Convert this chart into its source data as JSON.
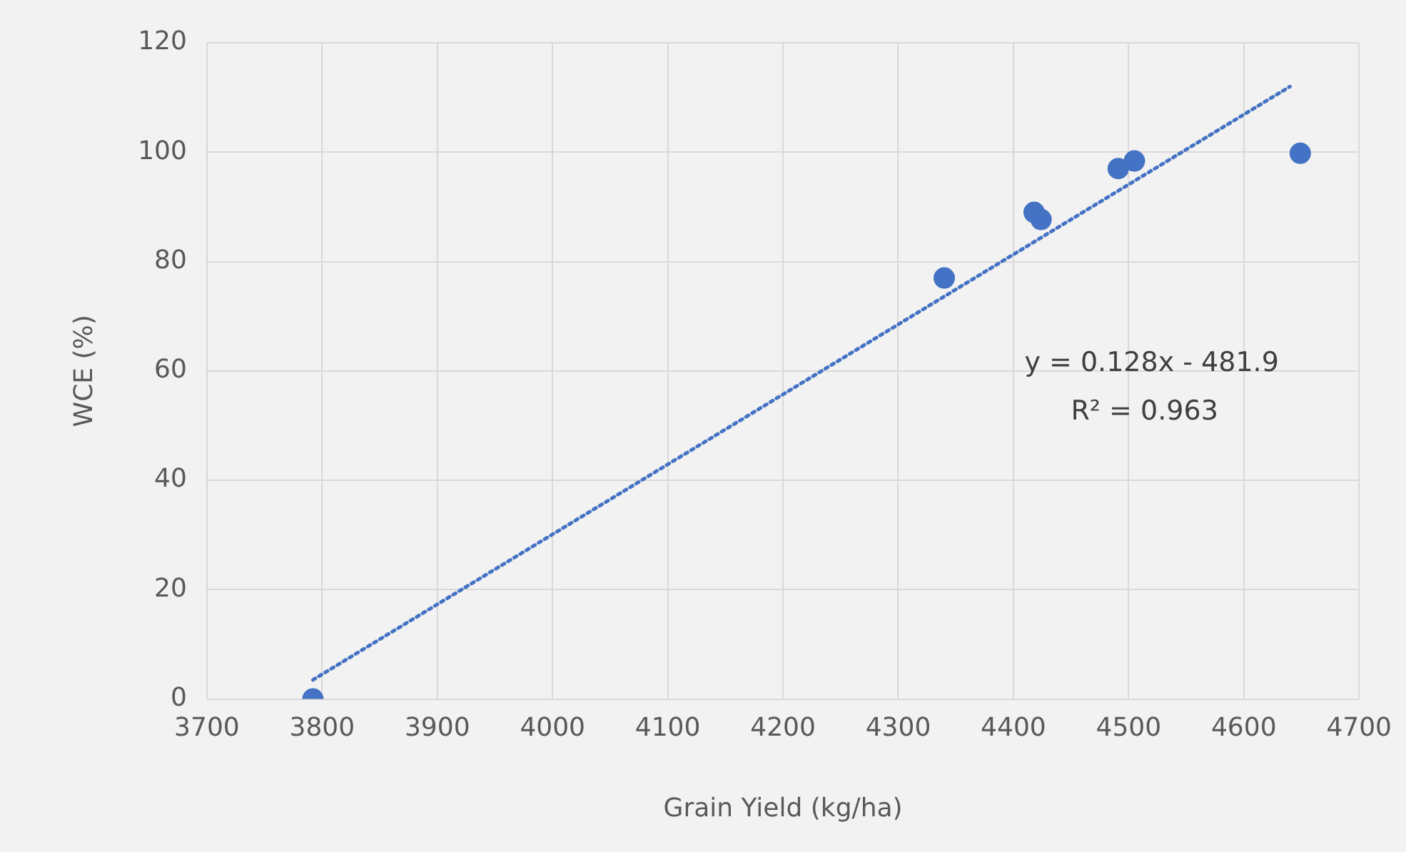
{
  "chart_data": {
    "type": "scatter",
    "xlabel": "Grain Yield (kg/ha)",
    "ylabel": "WCE (%)",
    "xlim": [
      3700,
      4700
    ],
    "xticks": [
      3700,
      3800,
      3900,
      4000,
      4100,
      4200,
      4300,
      4400,
      4500,
      4600,
      4700
    ],
    "ylim": [
      0,
      120
    ],
    "yticks": [
      0,
      20,
      40,
      60,
      80,
      100,
      120
    ],
    "grid": true,
    "legend": false,
    "marker": "circle",
    "series": [
      {
        "type": "scatter",
        "color": "#4472c4",
        "x": [
          3792,
          4340,
          4418,
          4424,
          4491,
          4505,
          4649
        ],
        "values": [
          0,
          77,
          89,
          87.7,
          97,
          98.4,
          99.8
        ]
      },
      {
        "type": "line",
        "color": "#4472c4",
        "line_style": "dotted",
        "marker": "none",
        "x": [
          3792,
          4640
        ],
        "values": [
          3.5,
          112
        ]
      }
    ],
    "annotations": [
      "y = 0.128x - 481.9",
      "R² = 0.963"
    ]
  }
}
